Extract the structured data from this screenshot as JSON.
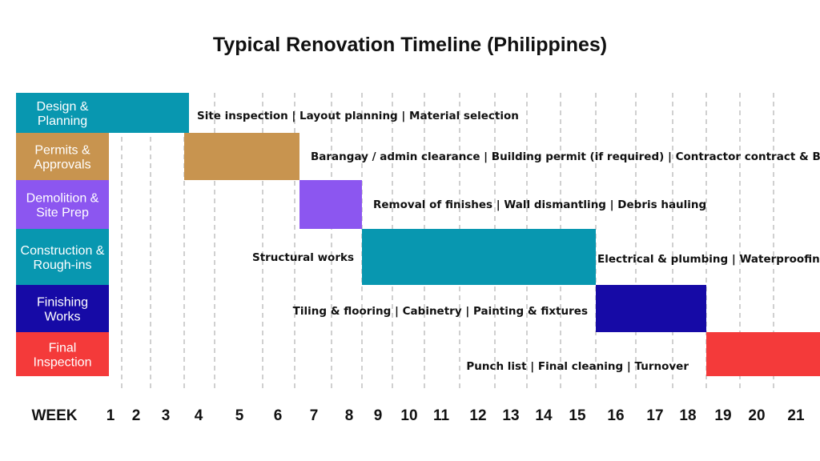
{
  "colors": {
    "design": "#0897b0",
    "permits": "#c8944f",
    "demolition": "#8c56f0",
    "construction": "#0897b0",
    "finishing": "#160aa6",
    "final": "#f43a3a",
    "grid": "#a0a0a0",
    "background": "#ffffff"
  },
  "chart_data": {
    "type": "gantt",
    "title": "Typical Renovation Timeline (Philippines)",
    "axis_label": "WEEK",
    "weeks": [
      "1",
      "2",
      "3",
      "4",
      "5",
      "6",
      "7",
      "8",
      "9",
      "10",
      "11",
      "12",
      "13",
      "14",
      "15",
      "16",
      "17",
      "18",
      "19",
      "20",
      "21"
    ],
    "grid": true,
    "phases": [
      {
        "id": "design",
        "label": [
          "Design &",
          "Planning"
        ],
        "start_week": 1,
        "end_week": 3,
        "tasks": "Site inspection | Layout planning | Material selection"
      },
      {
        "id": "permits",
        "label": [
          "Permits &",
          "Approvals"
        ],
        "start_week": 4,
        "end_week": 6,
        "tasks": "Barangay / admin clearance | Building permit (if required) | Contractor contract & BOQ"
      },
      {
        "id": "demolition",
        "label": [
          "Demolition &",
          "Site Prep"
        ],
        "start_week": 7,
        "end_week": 8,
        "tasks": "Removal of finishes | Wall dismantling | Debris hauling"
      },
      {
        "id": "construction",
        "label": [
          "Construction &",
          "Rough-ins"
        ],
        "start_week": 9,
        "end_week": 15,
        "tasks_before": "Structural works",
        "tasks": "Electrical & plumbing | Waterproofing"
      },
      {
        "id": "finishing",
        "label": [
          "Finishing",
          "Works"
        ],
        "start_week": 16,
        "end_week": 18,
        "tasks": "Tiling & flooring | Cabinetry | Painting & fixtures"
      },
      {
        "id": "final",
        "label": [
          "Final",
          "Inspection"
        ],
        "start_week": 19,
        "end_week": 21,
        "tasks": "Punch list | Final cleaning | Turnover"
      }
    ]
  }
}
